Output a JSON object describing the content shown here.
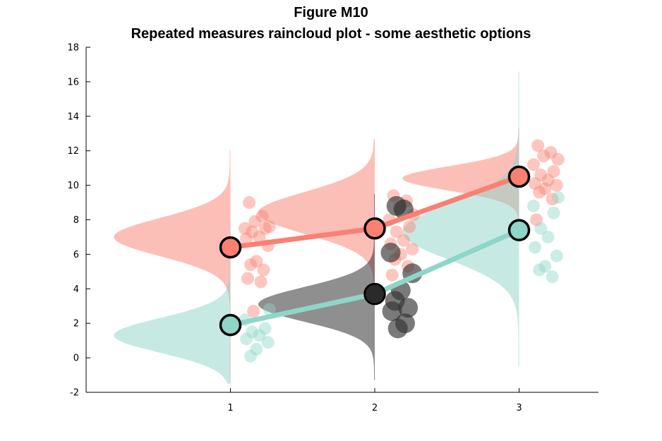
{
  "chart_data": {
    "type": "scatter",
    "title": "Figure M10",
    "subtitle": "Repeated measures raincloud plot - some aesthetic options",
    "xlabel": "",
    "ylabel": "",
    "xlim": [
      0,
      3.55
    ],
    "ylim": [
      -2,
      18
    ],
    "xticks": [
      1,
      2,
      3
    ],
    "yticks": [
      -2,
      0,
      2,
      4,
      6,
      8,
      10,
      12,
      14,
      16,
      18
    ],
    "grid": false,
    "colors": {
      "salmon": "#fa8072",
      "teal": "#8ed6c8",
      "dark": "#333333"
    },
    "series": [
      {
        "color": "salmon",
        "means": [
          6.4,
          7.5,
          10.5
        ],
        "marker_outline": true,
        "clouds": [
          {
            "x": 1,
            "mu": 7.0,
            "sd": 1.1,
            "ymin": -1.5,
            "ymax": 12
          },
          {
            "x": 2,
            "mu": 8.4,
            "sd": 1.2,
            "ymin": 4.2,
            "ymax": 12.7
          },
          {
            "x": 3,
            "mu": 10.4,
            "sd": 0.7,
            "ymin": 7.2,
            "ymax": 13.3
          }
        ],
        "rain": [
          {
            "x": 1,
            "values": [
              9.0,
              8.2,
              7.9,
              7.6,
              7.5,
              7.5,
              7.3,
              7.0,
              6.9,
              6.5,
              5.6,
              5.4,
              5.1,
              4.6,
              4.4,
              2.7
            ]
          },
          {
            "x": 2,
            "values": [
              9.4,
              9.1,
              8.7,
              8.3,
              8.0,
              7.6,
              7.3,
              6.8,
              6.6,
              6.3,
              6.0,
              5.7,
              5.3,
              4.8
            ]
          },
          {
            "x": 3,
            "values": [
              12.3,
              11.9,
              11.7,
              11.5,
              11.2,
              10.8,
              10.6,
              10.3,
              10.1,
              10.0,
              9.8,
              9.6,
              9.2,
              8.0
            ]
          }
        ]
      },
      {
        "color": "teal",
        "means": [
          1.9,
          3.7,
          7.4
        ],
        "marker_outline": true,
        "clouds": [
          {
            "x": 1,
            "mu": 1.3,
            "sd": 1.0,
            "ymin": -1.5,
            "ymax": 8.0
          },
          {
            "x": 3,
            "mu": 7.3,
            "sd": 1.6,
            "ymin": -0.5,
            "ymax": 16.6
          }
        ],
        "rain": [
          {
            "x": 1,
            "values": [
              2.8,
              2.2,
              1.7,
              1.5,
              1.3,
              1.1,
              0.9,
              0.5,
              0.1
            ]
          },
          {
            "x": 3,
            "values": [
              9.3,
              8.8,
              8.4,
              7.5,
              7.0,
              6.4,
              5.9,
              5.3,
              5.1,
              4.7
            ]
          }
        ]
      },
      {
        "color": "dark",
        "means": [
          3.7
        ],
        "mean_x": [
          2
        ],
        "marker_outline": false,
        "clouds": [
          {
            "x": 2,
            "mu": 3.1,
            "sd": 1.0,
            "ymin": -1.3,
            "ymax": 9.5
          }
        ],
        "rain": [
          {
            "x": 2,
            "values": [
              8.8,
              8.6,
              6.1,
              4.9,
              3.9,
              3.3,
              2.9,
              2.7,
              2.0,
              1.7
            ]
          }
        ]
      }
    ]
  }
}
